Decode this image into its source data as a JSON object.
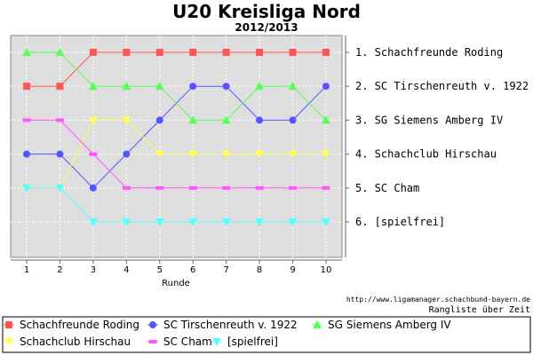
{
  "chart_data": {
    "type": "line",
    "title": "U20 Kreisliga Nord",
    "subtitle": "2012/2013",
    "xlabel": "Runde",
    "ylabel": "",
    "x": [
      1,
      2,
      3,
      4,
      5,
      6,
      7,
      8,
      9,
      10
    ],
    "ylim": [
      1,
      6
    ],
    "y_inverted": true,
    "grid": true,
    "legend_position": "bottom",
    "rank_labels": [
      "1.  Schachfreunde Roding",
      "2.  SC Tirschenreuth v. 1922",
      "3.  SG Siemens Amberg IV",
      "4.  Schachclub Hirschau",
      "5.  SC Cham",
      "6.  [spielfrei]"
    ],
    "series": [
      {
        "name": "Schachfreunde Roding",
        "color": "#ff5555",
        "marker": "square",
        "values": [
          2,
          2,
          1,
          1,
          1,
          1,
          1,
          1,
          1,
          1
        ]
      },
      {
        "name": "SC Tirschenreuth v. 1922",
        "color": "#5555ff",
        "marker": "circle",
        "values": [
          4,
          4,
          5,
          4,
          3,
          2,
          2,
          3,
          3,
          2
        ]
      },
      {
        "name": "SG Siemens Amberg IV",
        "color": "#55ff55",
        "marker": "triangle-up",
        "values": [
          1,
          1,
          2,
          2,
          2,
          3,
          3,
          2,
          2,
          3
        ]
      },
      {
        "name": "Schachclub Hirschau",
        "color": "#ffff55",
        "marker": "triangle-down",
        "values": [
          5,
          5,
          3,
          3,
          4,
          4,
          4,
          4,
          4,
          4
        ]
      },
      {
        "name": "SC Cham",
        "color": "#ff55ff",
        "marker": "dash",
        "values": [
          3,
          3,
          4,
          5,
          5,
          5,
          5,
          5,
          5,
          5
        ]
      },
      {
        "name": "[spielfrei]",
        "color": "#55ffff",
        "marker": "triangle-down",
        "values": [
          5,
          5,
          6,
          6,
          6,
          6,
          6,
          6,
          6,
          6
        ]
      }
    ],
    "source": "http://www.ligamanager.schachbund-bayern.de",
    "caption": "Rangliste über Zeit"
  }
}
